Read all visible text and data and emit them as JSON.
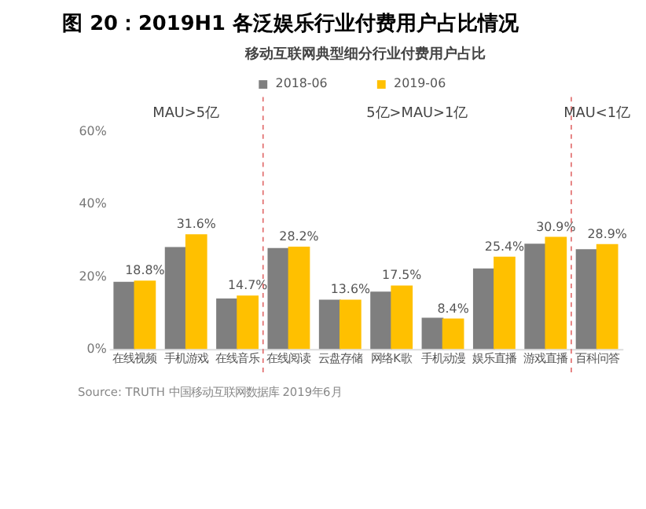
{
  "chart_data": {
    "type": "bar",
    "title": "图 20：2019H1 各泛娱乐行业付费用户占比情况",
    "subtitle": "移动互联网典型细分行业付费用户占比",
    "categories": [
      "在线视频",
      "手机游戏",
      "在线音乐",
      "在线阅读",
      "云盘存储",
      "网络K歌",
      "手机动漫",
      "娱乐直播",
      "游戏直播",
      "百科问答"
    ],
    "series": [
      {
        "name": "2018-06",
        "color": "#7f7f7f",
        "values": [
          18.5,
          28.1,
          13.9,
          27.8,
          13.6,
          15.8,
          8.6,
          22.2,
          29.0,
          27.5
        ]
      },
      {
        "name": "2019-06",
        "color": "#ffc000",
        "values": [
          18.8,
          31.6,
          14.7,
          28.2,
          13.6,
          17.5,
          8.4,
          25.4,
          30.9,
          28.9
        ],
        "value_labels": [
          "18.8%",
          "31.6%",
          "14.7%",
          "28.2%",
          "13.6%",
          "17.5%",
          "8.4%",
          "25.4%",
          "30.9%",
          "28.9%"
        ]
      }
    ],
    "ylim": [
      0,
      60
    ],
    "yticks": [
      {
        "value": 0,
        "label": "0%"
      },
      {
        "value": 20,
        "label": "20%"
      },
      {
        "value": 40,
        "label": "40%"
      },
      {
        "value": 60,
        "label": "60%"
      }
    ],
    "annotations": [
      "MAU>5亿",
      "5亿>MAU>1亿",
      "MAU<1亿",
      "Source:  TRUTH 中国移动互联网数据库 2019年6月"
    ],
    "grid": false,
    "legend": "top"
  }
}
